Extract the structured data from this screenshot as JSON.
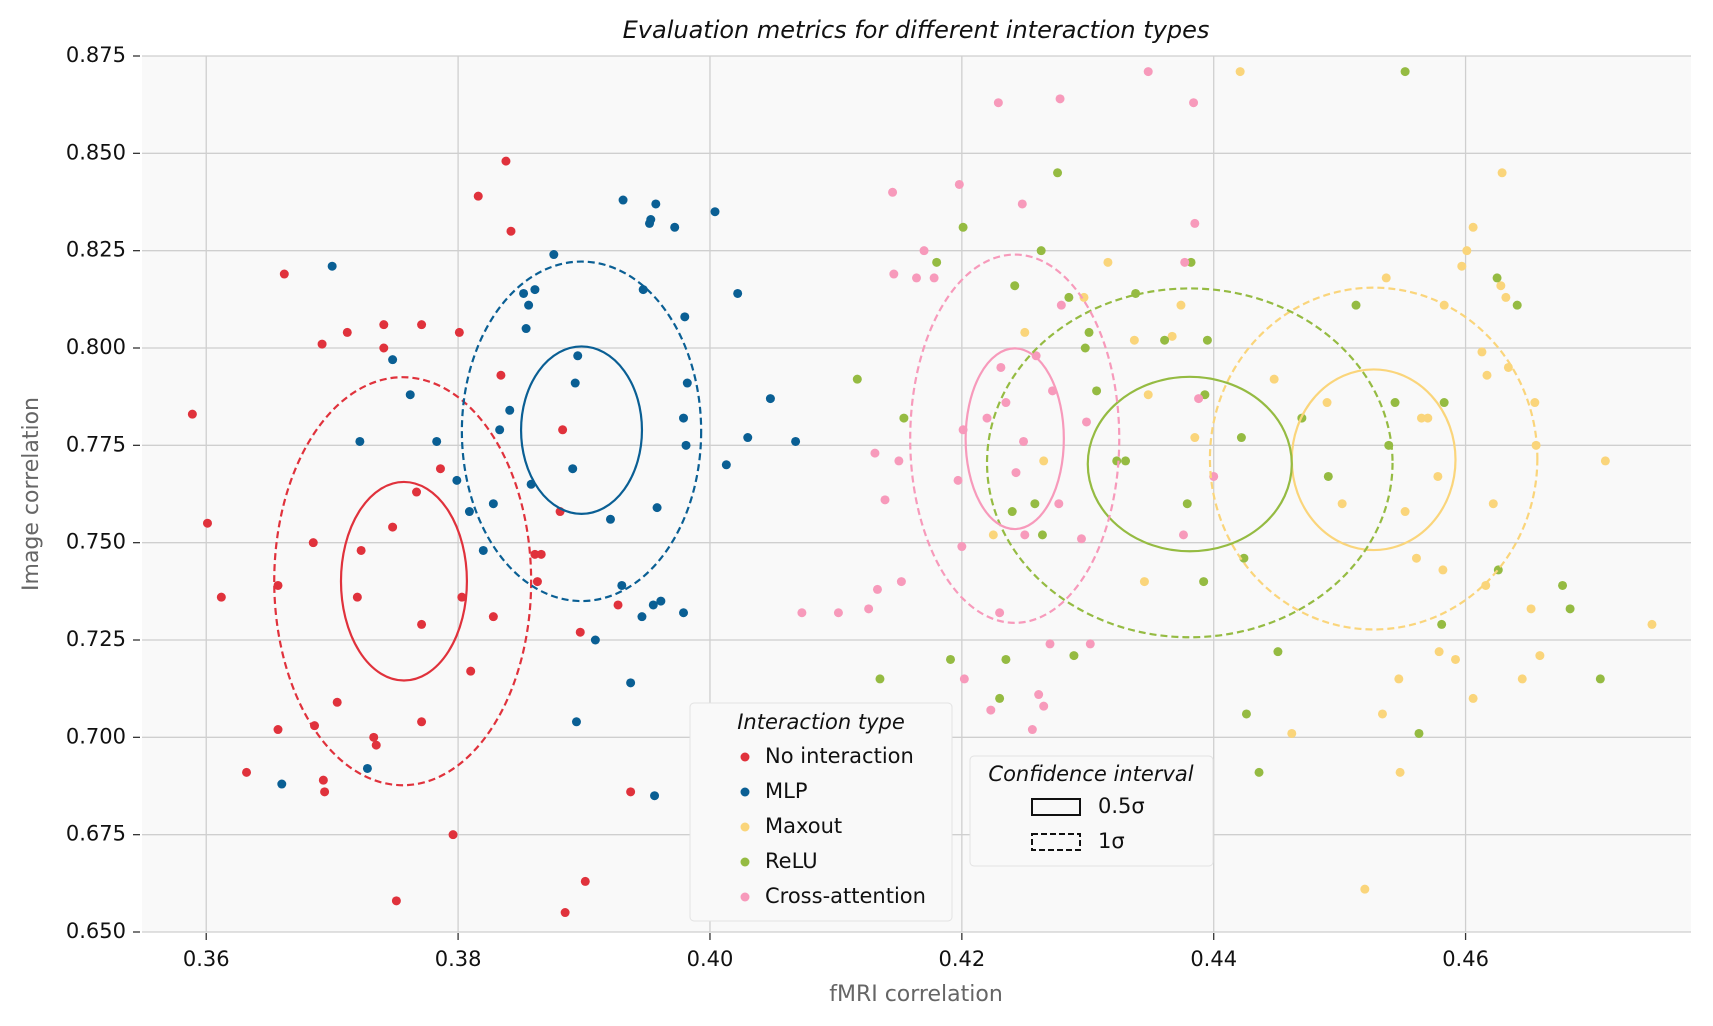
{
  "chart_data": {
    "type": "scatter",
    "title": "Evaluation metrics for different interaction types",
    "x_label": "fMRI correlation",
    "y_label": "Image correlation",
    "xlim": [
      0.3549,
      0.4779
    ],
    "ylim": [
      0.65,
      0.875
    ],
    "xticks": [
      0.36,
      0.38,
      {
        "value": 0.4,
        "label": "0.40"
      },
      0.42,
      0.44,
      0.46
    ],
    "yticks": [
      {
        "value": 0.65,
        "label": "0.650"
      },
      0.675,
      {
        "value": 0.7,
        "label": "0.700"
      },
      0.725,
      {
        "value": 0.75,
        "label": "0.750"
      },
      0.775,
      {
        "value": 0.8,
        "label": "0.800"
      },
      0.825,
      {
        "value": 0.85,
        "label": "0.850"
      },
      0.875
    ],
    "grid": true,
    "legend_title": "Interaction type",
    "confidence_title": "Confidence interval",
    "confidence_intervals": [
      {
        "label": "0.5σ",
        "dashed": false
      },
      {
        "label": "1σ",
        "dashed": true
      }
    ],
    "series": [
      {
        "name": "No interaction",
        "color": "#e0323c",
        "x": [
          0.3589,
          0.3601,
          0.3612,
          0.3632,
          0.3657,
          0.3657,
          0.3662,
          0.3685,
          0.3686,
          0.3692,
          0.3693,
          0.3694,
          0.3704,
          0.3712,
          0.372,
          0.3723,
          0.3733,
          0.3735,
          0.3741,
          0.3741,
          0.3748,
          0.3751,
          0.3767,
          0.3771,
          0.3771,
          0.3771,
          0.3786,
          0.3796,
          0.3801,
          0.3803,
          0.381,
          0.3816,
          0.3828,
          0.3834,
          0.3838,
          0.3842,
          0.3881,
          0.3883,
          0.3861,
          0.3866,
          0.3863,
          0.3885,
          0.3897,
          0.3901,
          0.3927,
          0.3937
        ],
        "y": [
          0.783,
          0.755,
          0.736,
          0.691,
          0.739,
          0.702,
          0.819,
          0.75,
          0.703,
          0.801,
          0.689,
          0.686,
          0.709,
          0.804,
          0.736,
          0.748,
          0.7,
          0.698,
          0.806,
          0.8,
          0.754,
          0.658,
          0.763,
          0.806,
          0.729,
          0.704,
          0.769,
          0.675,
          0.804,
          0.736,
          0.717,
          0.839,
          0.731,
          0.793,
          0.848,
          0.83,
          0.758,
          0.779,
          0.747,
          0.747,
          0.74,
          0.655,
          0.727,
          0.663,
          0.734,
          0.686
        ],
        "ellipses": [
          {
            "cx": 0.3757,
            "cy": 0.7401,
            "rx": 0.005,
            "ry": 0.0255
          },
          {
            "cx": 0.3756,
            "cy": 0.7401,
            "rx": 0.0102,
            "ry": 0.0524
          }
        ]
      },
      {
        "name": "MLP",
        "color": "#0a5f94",
        "x": [
          0.366,
          0.37,
          0.3722,
          0.3728,
          0.3748,
          0.3762,
          0.3783,
          0.3799,
          0.3809,
          0.382,
          0.3828,
          0.3833,
          0.3841,
          0.3852,
          0.3854,
          0.3856,
          0.3858,
          0.3861,
          0.3876,
          0.3891,
          0.3893,
          0.3894,
          0.3895,
          0.3909,
          0.3921,
          0.393,
          0.3931,
          0.3937,
          0.3946,
          0.3947,
          0.3952,
          0.3953,
          0.3955,
          0.3956,
          0.3957,
          0.3958,
          0.3961,
          0.3972,
          0.3979,
          0.3979,
          0.398,
          0.3981,
          0.3982,
          0.4004,
          0.4013,
          0.4022,
          0.403,
          0.4048,
          0.4068
        ],
        "y": [
          0.688,
          0.821,
          0.776,
          0.692,
          0.797,
          0.788,
          0.776,
          0.766,
          0.758,
          0.748,
          0.76,
          0.779,
          0.784,
          0.814,
          0.805,
          0.811,
          0.765,
          0.815,
          0.824,
          0.769,
          0.791,
          0.704,
          0.798,
          0.725,
          0.756,
          0.739,
          0.838,
          0.714,
          0.731,
          0.815,
          0.832,
          0.833,
          0.734,
          0.685,
          0.837,
          0.759,
          0.735,
          0.831,
          0.732,
          0.782,
          0.808,
          0.775,
          0.791,
          0.835,
          0.77,
          0.814,
          0.777,
          0.787,
          0.776
        ],
        "ellipses": [
          {
            "cx": 0.3898,
            "cy": 0.7789,
            "rx": 0.0048,
            "ry": 0.0215
          },
          {
            "cx": 0.3898,
            "cy": 0.7786,
            "rx": 0.0095,
            "ry": 0.0436
          }
        ]
      },
      {
        "name": "Maxout",
        "color": "#fad57b",
        "x": [
          0.4225,
          0.425,
          0.4265,
          0.4316,
          0.4297,
          0.4337,
          0.4345,
          0.4348,
          0.4367,
          0.4374,
          0.4385,
          0.4421,
          0.4448,
          0.4462,
          0.449,
          0.4502,
          0.452,
          0.4534,
          0.4537,
          0.4548,
          0.4547,
          0.4552,
          0.4561,
          0.4565,
          0.457,
          0.4578,
          0.4579,
          0.4582,
          0.4583,
          0.4592,
          0.4597,
          0.4601,
          0.4606,
          0.4606,
          0.4613,
          0.4616,
          0.4617,
          0.4622,
          0.4628,
          0.4629,
          0.4632,
          0.4634,
          0.4652,
          0.4655,
          0.4656,
          0.4659,
          0.4645,
          0.4711,
          0.4748
        ],
        "y": [
          0.752,
          0.804,
          0.771,
          0.822,
          0.813,
          0.802,
          0.74,
          0.788,
          0.803,
          0.811,
          0.777,
          0.871,
          0.792,
          0.701,
          0.786,
          0.76,
          0.661,
          0.706,
          0.818,
          0.691,
          0.715,
          0.758,
          0.746,
          0.782,
          0.782,
          0.767,
          0.722,
          0.743,
          0.811,
          0.72,
          0.821,
          0.825,
          0.71,
          0.831,
          0.799,
          0.739,
          0.793,
          0.76,
          0.816,
          0.845,
          0.813,
          0.795,
          0.733,
          0.786,
          0.775,
          0.721,
          0.715,
          0.771,
          0.729
        ],
        "ellipses": [
          {
            "cx": 0.4527,
            "cy": 0.7713,
            "rx": 0.0065,
            "ry": 0.0232
          },
          {
            "cx": 0.4527,
            "cy": 0.7716,
            "rx": 0.013,
            "ry": 0.0439
          }
        ]
      },
      {
        "name": "ReLU",
        "color": "#95bb42",
        "x": [
          0.4117,
          0.4135,
          0.4154,
          0.417,
          0.418,
          0.4191,
          0.4201,
          0.423,
          0.4235,
          0.424,
          0.4242,
          0.4258,
          0.4263,
          0.4264,
          0.4276,
          0.4285,
          0.4289,
          0.4298,
          0.4301,
          0.4307,
          0.4323,
          0.433,
          0.4338,
          0.4361,
          0.4379,
          0.4382,
          0.4392,
          0.4393,
          0.4395,
          0.4422,
          0.4424,
          0.4426,
          0.4436,
          0.4451,
          0.447,
          0.4491,
          0.4513,
          0.4539,
          0.4544,
          0.4552,
          0.4563,
          0.4581,
          0.4583,
          0.4625,
          0.4626,
          0.4641,
          0.4677,
          0.4683,
          0.4707
        ],
        "y": [
          0.792,
          0.715,
          0.782,
          0.661,
          0.822,
          0.72,
          0.831,
          0.71,
          0.72,
          0.758,
          0.816,
          0.76,
          0.825,
          0.752,
          0.845,
          0.813,
          0.721,
          0.8,
          0.804,
          0.789,
          0.771,
          0.771,
          0.814,
          0.802,
          0.76,
          0.822,
          0.74,
          0.788,
          0.802,
          0.777,
          0.746,
          0.706,
          0.691,
          0.722,
          0.782,
          0.767,
          0.811,
          0.775,
          0.786,
          0.871,
          0.701,
          0.729,
          0.786,
          0.818,
          0.743,
          0.811,
          0.739,
          0.733,
          0.715
        ],
        "ellipses": [
          {
            "cx": 0.4381,
            "cy": 0.7702,
            "rx": 0.0081,
            "ry": 0.0224
          },
          {
            "cx": 0.4381,
            "cy": 0.7705,
            "rx": 0.0161,
            "ry": 0.0448
          }
        ]
      },
      {
        "name": "Cross-attention",
        "color": "#f79abb",
        "x": [
          0.4073,
          0.4102,
          0.4126,
          0.4131,
          0.4133,
          0.4139,
          0.4145,
          0.4146,
          0.415,
          0.4152,
          0.4164,
          0.417,
          0.4178,
          0.4198,
          0.4197,
          0.42,
          0.4201,
          0.4202,
          0.422,
          0.4223,
          0.4229,
          0.423,
          0.4231,
          0.4235,
          0.4243,
          0.4248,
          0.4249,
          0.425,
          0.4256,
          0.4259,
          0.4261,
          0.4265,
          0.427,
          0.4272,
          0.4278,
          0.4277,
          0.4279,
          0.4295,
          0.4299,
          0.4302,
          0.4348,
          0.4376,
          0.4377,
          0.4384,
          0.4385,
          0.4388,
          0.44
        ],
        "y": [
          0.732,
          0.732,
          0.733,
          0.773,
          0.738,
          0.761,
          0.84,
          0.819,
          0.771,
          0.74,
          0.818,
          0.825,
          0.818,
          0.842,
          0.766,
          0.749,
          0.779,
          0.715,
          0.782,
          0.707,
          0.863,
          0.732,
          0.795,
          0.786,
          0.768,
          0.837,
          0.776,
          0.752,
          0.702,
          0.798,
          0.711,
          0.708,
          0.724,
          0.789,
          0.864,
          0.76,
          0.811,
          0.751,
          0.781,
          0.724,
          0.871,
          0.752,
          0.822,
          0.863,
          0.832,
          0.787,
          0.767
        ],
        "ellipses": [
          {
            "cx": 0.4242,
            "cy": 0.7767,
            "rx": 0.0039,
            "ry": 0.0232
          },
          {
            "cx": 0.4242,
            "cy": 0.7767,
            "rx": 0.0083,
            "ry": 0.0473
          }
        ]
      }
    ]
  }
}
